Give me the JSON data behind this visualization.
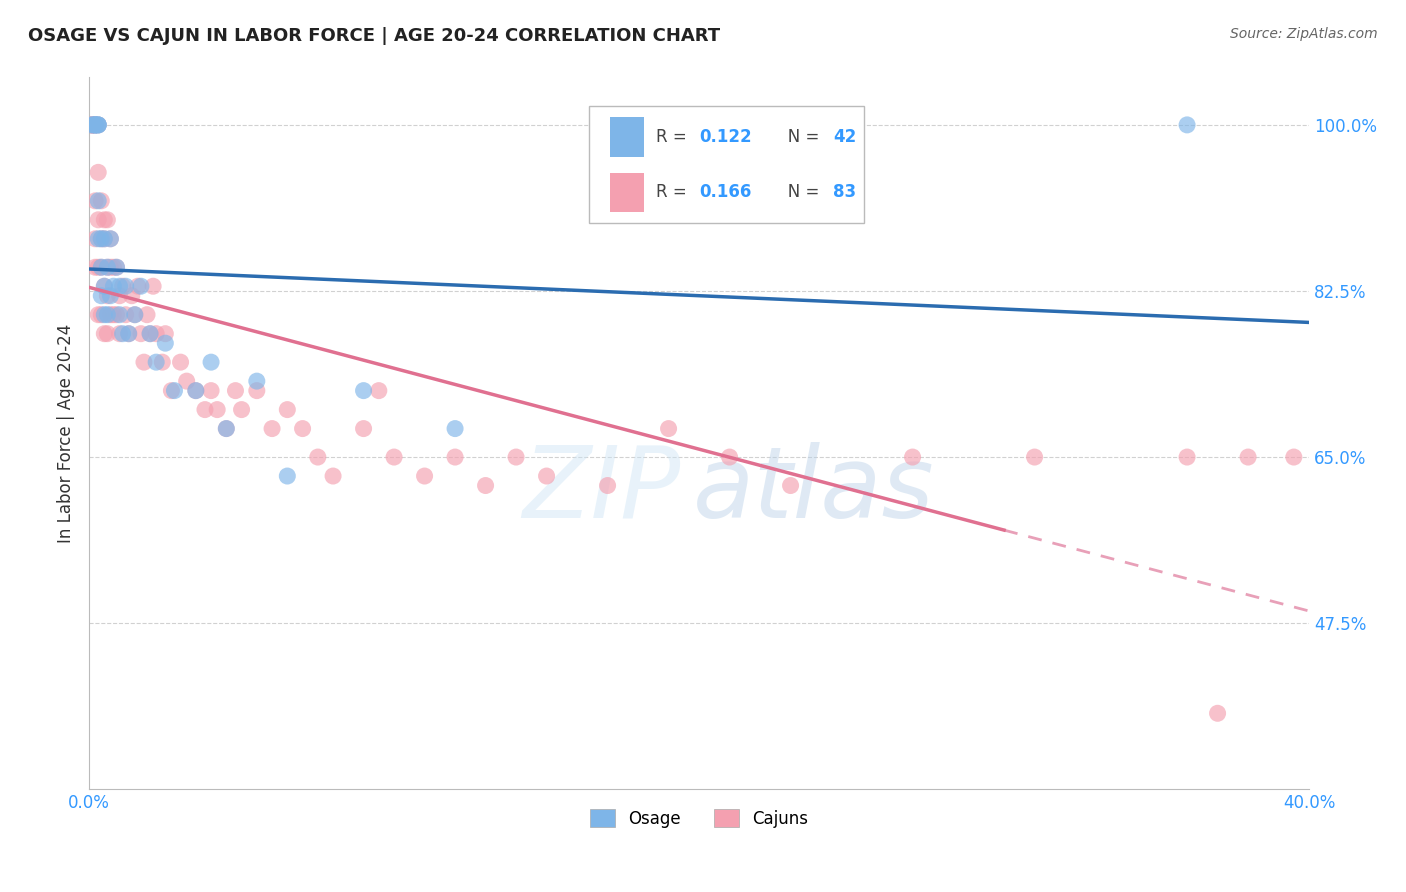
{
  "title": "OSAGE VS CAJUN IN LABOR FORCE | AGE 20-24 CORRELATION CHART",
  "source_text": "Source: ZipAtlas.com",
  "ylabel": "In Labor Force | Age 20-24",
  "xlim": [
    0.0,
    0.4
  ],
  "ylim": [
    0.3,
    1.05
  ],
  "background_color": "#ffffff",
  "grid_color": "#cccccc",
  "osage_color": "#7eb5e8",
  "cajun_color": "#f4a0b0",
  "osage_line_color": "#2b6cb0",
  "cajun_line_color": "#e07090",
  "cajun_line_dashed_color": "#e8a0b8",
  "osage_x": [
    0.001,
    0.001,
    0.002,
    0.002,
    0.002,
    0.002,
    0.003,
    0.003,
    0.003,
    0.003,
    0.003,
    0.004,
    0.004,
    0.004,
    0.005,
    0.005,
    0.005,
    0.006,
    0.006,
    0.007,
    0.007,
    0.008,
    0.009,
    0.01,
    0.01,
    0.011,
    0.012,
    0.013,
    0.015,
    0.017,
    0.02,
    0.022,
    0.025,
    0.028,
    0.035,
    0.04,
    0.045,
    0.055,
    0.065,
    0.09,
    0.12,
    0.36
  ],
  "osage_y": [
    1.0,
    1.0,
    1.0,
    1.0,
    1.0,
    1.0,
    1.0,
    1.0,
    1.0,
    0.92,
    0.88,
    0.88,
    0.85,
    0.82,
    0.88,
    0.83,
    0.8,
    0.85,
    0.8,
    0.88,
    0.82,
    0.83,
    0.85,
    0.83,
    0.8,
    0.78,
    0.83,
    0.78,
    0.8,
    0.83,
    0.78,
    0.75,
    0.77,
    0.72,
    0.72,
    0.75,
    0.68,
    0.73,
    0.63,
    0.72,
    0.68,
    1.0
  ],
  "cajun_x": [
    0.001,
    0.001,
    0.001,
    0.001,
    0.002,
    0.002,
    0.002,
    0.002,
    0.002,
    0.003,
    0.003,
    0.003,
    0.003,
    0.003,
    0.004,
    0.004,
    0.004,
    0.004,
    0.005,
    0.005,
    0.005,
    0.005,
    0.006,
    0.006,
    0.006,
    0.006,
    0.007,
    0.007,
    0.007,
    0.008,
    0.008,
    0.009,
    0.009,
    0.01,
    0.01,
    0.011,
    0.012,
    0.013,
    0.014,
    0.015,
    0.016,
    0.017,
    0.018,
    0.019,
    0.02,
    0.021,
    0.022,
    0.024,
    0.025,
    0.027,
    0.03,
    0.032,
    0.035,
    0.038,
    0.04,
    0.042,
    0.045,
    0.048,
    0.05,
    0.055,
    0.06,
    0.065,
    0.07,
    0.075,
    0.08,
    0.09,
    0.095,
    0.1,
    0.11,
    0.12,
    0.13,
    0.14,
    0.15,
    0.17,
    0.19,
    0.21,
    0.23,
    0.27,
    0.31,
    0.36,
    0.37,
    0.38,
    0.395
  ],
  "cajun_y": [
    1.0,
    1.0,
    1.0,
    1.0,
    1.0,
    1.0,
    0.92,
    0.88,
    0.85,
    1.0,
    0.95,
    0.9,
    0.85,
    0.8,
    0.92,
    0.88,
    0.85,
    0.8,
    0.9,
    0.88,
    0.83,
    0.78,
    0.9,
    0.85,
    0.82,
    0.78,
    0.88,
    0.85,
    0.8,
    0.85,
    0.8,
    0.85,
    0.8,
    0.82,
    0.78,
    0.83,
    0.8,
    0.78,
    0.82,
    0.8,
    0.83,
    0.78,
    0.75,
    0.8,
    0.78,
    0.83,
    0.78,
    0.75,
    0.78,
    0.72,
    0.75,
    0.73,
    0.72,
    0.7,
    0.72,
    0.7,
    0.68,
    0.72,
    0.7,
    0.72,
    0.68,
    0.7,
    0.68,
    0.65,
    0.63,
    0.68,
    0.72,
    0.65,
    0.63,
    0.65,
    0.62,
    0.65,
    0.63,
    0.62,
    0.68,
    0.65,
    0.62,
    0.65,
    0.65,
    0.65,
    0.38,
    0.65,
    0.65
  ]
}
